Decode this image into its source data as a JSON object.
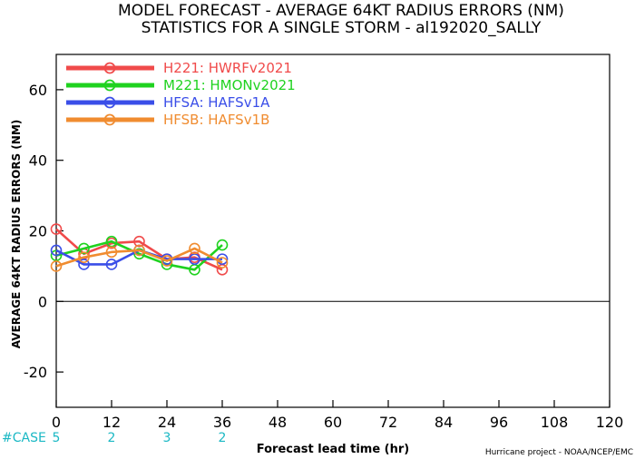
{
  "chart_data": {
    "type": "line",
    "title": "MODEL FORECAST - AVERAGE 64KT RADIUS ERRORS (NM)",
    "subtitle": "STATISTICS FOR A SINGLE STORM - al192020_SALLY",
    "xlabel": "Forecast lead time (hr)",
    "ylabel": "AVERAGE 64KT RADIUS ERRORS (NM)",
    "credit": "Hurricane project - NOAA/NCEP/EMC",
    "xlim": [
      0,
      120
    ],
    "ylim": [
      -30,
      70
    ],
    "xticks": [
      0,
      12,
      24,
      36,
      48,
      60,
      72,
      84,
      96,
      108,
      120
    ],
    "yticks": [
      -20,
      0,
      20,
      40,
      60
    ],
    "grid": false,
    "legend_position": "top-left",
    "zero_line": 0,
    "case_label": "#CASE",
    "case_counts": [
      {
        "x": 0,
        "n": "5"
      },
      {
        "x": 12,
        "n": "2"
      },
      {
        "x": 24,
        "n": "3"
      },
      {
        "x": 36,
        "n": "2"
      }
    ],
    "series": [
      {
        "name": "H221: HWRFv2021",
        "color": "#f04a4a",
        "x": [
          0,
          6,
          12,
          18,
          24,
          30,
          36
        ],
        "y": [
          20.5,
          13.5,
          16.5,
          17,
          12,
          12.5,
          9
        ]
      },
      {
        "name": "M221: HMONv2021",
        "color": "#1fd21f",
        "x": [
          0,
          6,
          12,
          18,
          24,
          30,
          36
        ],
        "y": [
          13,
          15,
          17,
          13.5,
          10.5,
          9,
          16
        ]
      },
      {
        "name": "HFSA: HAFSv1A",
        "color": "#3a4ee8",
        "x": [
          0,
          6,
          12,
          18,
          24,
          30,
          36
        ],
        "y": [
          14.5,
          10.5,
          10.5,
          14.5,
          12,
          12,
          12
        ]
      },
      {
        "name": "HFSB: HAFSv1B",
        "color": "#f08c30",
        "x": [
          0,
          6,
          12,
          18,
          24,
          30,
          36
        ],
        "y": [
          10,
          12.5,
          14,
          14.5,
          11.5,
          15,
          11
        ]
      }
    ]
  }
}
